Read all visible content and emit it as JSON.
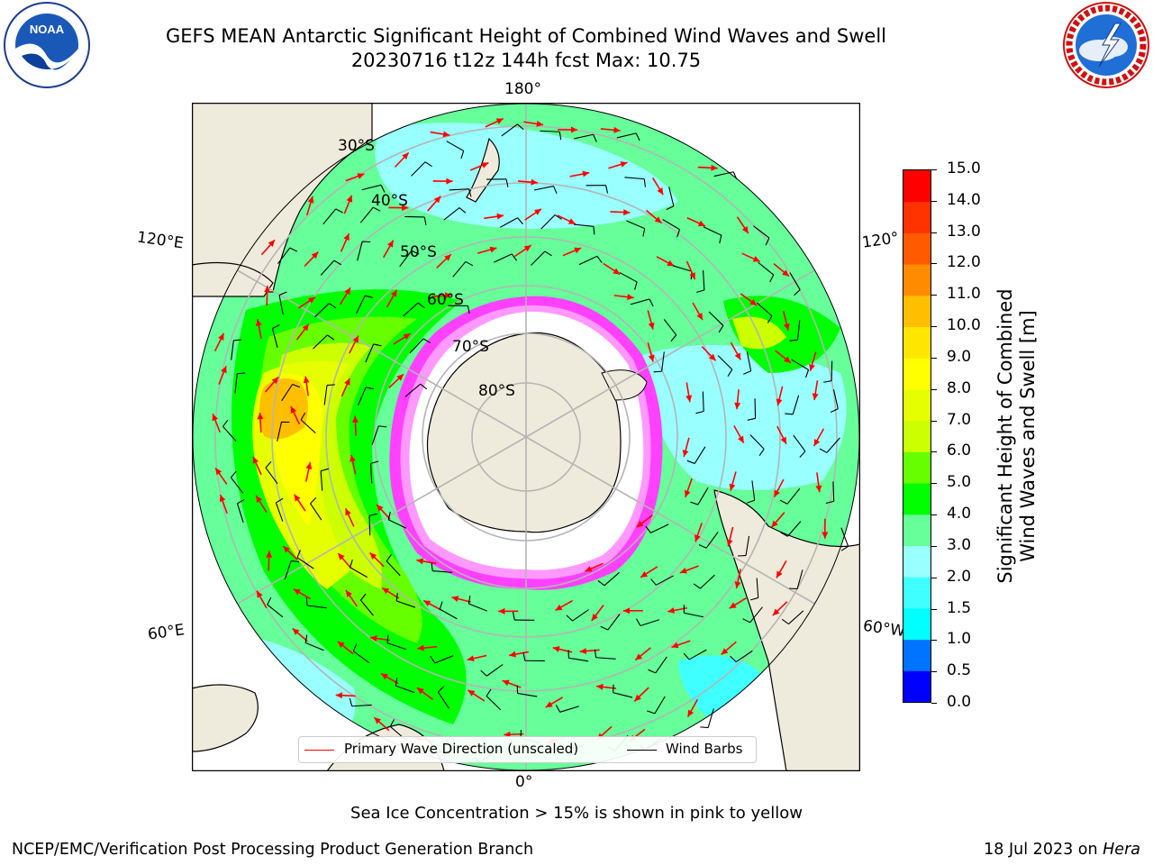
{
  "header": {
    "title_line1": "GEFS MEAN Antarctic Significant Height of Combined Wind Waves and Swell",
    "title_line2": "20230716 t12z 144h fcst   Max: 10.75",
    "left_logo": {
      "name": "noaa-logo",
      "text": "NOAA",
      "ring_text": "NATIONAL OCEANIC AND ATMOSPHERIC ADMINISTRATION · U.S. DEPARTMENT OF COMMERCE"
    },
    "right_logo": {
      "name": "nws-logo",
      "ring_text": "NATIONAL WEATHER SERVICE"
    }
  },
  "map": {
    "projection": "south-polar-stereographic",
    "longitude_labels": {
      "top": "180°",
      "bottom": "0°",
      "upper_left": "120°E",
      "lower_left": "60°E",
      "upper_right": "120°",
      "lower_right": "60°W"
    },
    "latitude_labels": [
      "30°S",
      "40°S",
      "50°S",
      "60°S",
      "70°S",
      "80°S"
    ],
    "field_max": 10.75,
    "sea_ice_colors": [
      "#ff40ff",
      "#ff99ff",
      "#ffbf40",
      "#ffff40"
    ],
    "land_color": "#efebdc",
    "ocean_base_color": "#66ff99",
    "arrow_color": "#ff0000",
    "barb_color": "#000000",
    "legend": [
      {
        "label": "Primary Wave Direction (unscaled)",
        "color": "#ff0000"
      },
      {
        "label": "Wind Barbs",
        "color": "#000000"
      }
    ]
  },
  "colorbar": {
    "label_line1": "Significant Height of Combined",
    "label_line2": "Wind Waves and Swell [m]",
    "ticks": [
      "0.0",
      "0.5",
      "1.0",
      "1.5",
      "2.0",
      "3.0",
      "4.0",
      "5.0",
      "6.0",
      "7.0",
      "8.0",
      "9.0",
      "10.0",
      "11.0",
      "12.0",
      "13.0",
      "14.0",
      "15.0"
    ],
    "colors": [
      "#0000ff",
      "#0073ff",
      "#00ffff",
      "#40ffff",
      "#99ffff",
      "#66ff99",
      "#00ff00",
      "#66ff00",
      "#ccff00",
      "#e6ff00",
      "#ffff00",
      "#ffe600",
      "#ffbf00",
      "#ff8c00",
      "#ff5a00",
      "#ff3300",
      "#ff0000"
    ]
  },
  "footer": {
    "sea_ice_note": "Sea Ice Concentration > 15% is shown in pink to yellow",
    "credit": "NCEP/EMC/Verification Post Processing Product Generation Branch",
    "date": "18 Jul 2023 on ",
    "machine": "Hera"
  }
}
